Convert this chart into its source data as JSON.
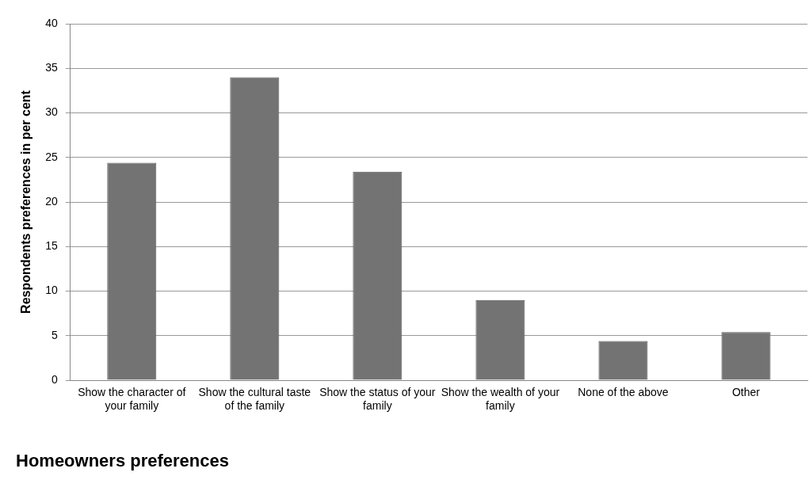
{
  "chart_data": {
    "type": "bar",
    "title": "Homeowners preferences",
    "ylabel": "Respondents preferences in per cent",
    "categories": [
      "Show the character of your family",
      "Show the cultural taste of the family",
      "Show the status of your family",
      "Show the wealth of your family",
      "None of the above",
      "Other"
    ],
    "values": [
      24.4,
      34,
      23.4,
      9,
      4.4,
      5.4
    ],
    "color": "#737373",
    "ylim": [
      0,
      40
    ],
    "yticks": [
      0,
      5,
      10,
      15,
      20,
      25,
      30,
      35,
      40
    ],
    "grid": "y"
  }
}
